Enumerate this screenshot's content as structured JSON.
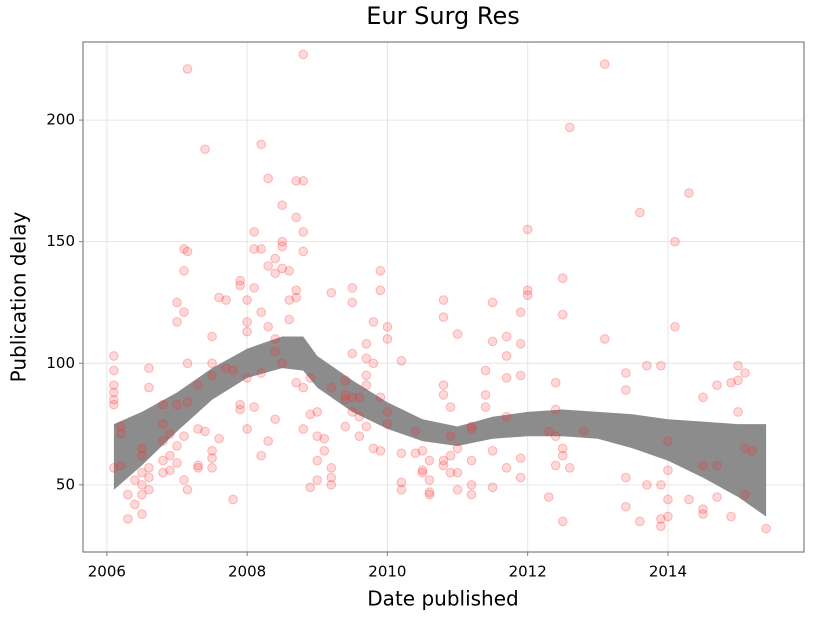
{
  "chart_data": {
    "type": "scatter",
    "title": "Eur Surg Res",
    "x_label": "Date published",
    "y_label": "Publication delay",
    "xlim": [
      2005.66,
      2015.94
    ],
    "ylim": [
      22.4,
      232.1
    ],
    "xticks": [
      2006,
      2008,
      2010,
      2012,
      2014
    ],
    "yticks": [
      50,
      100,
      150,
      200
    ],
    "grid": true,
    "color": "#ff2a2a",
    "band_color": "#8c8c8c",
    "x": [
      2006.1,
      2006.1,
      2006.1,
      2006.1,
      2006.1,
      2006.1,
      2006.1,
      2006.2,
      2006.2,
      2006.2,
      2006.3,
      2006.3,
      2006.4,
      2006.4,
      2006.5,
      2006.5,
      2006.5,
      2006.5,
      2006.5,
      2006.5,
      2006.6,
      2006.6,
      2006.6,
      2006.6,
      2006.6,
      2006.8,
      2006.8,
      2006.8,
      2006.8,
      2006.8,
      2006.9,
      2006.9,
      2006.9,
      2007.0,
      2007.0,
      2007.0,
      2007.0,
      2007.0,
      2007.1,
      2007.1,
      2007.1,
      2007.1,
      2007.1,
      2007.15,
      2007.15,
      2007.15,
      2007.15,
      2007.15,
      2007.3,
      2007.3,
      2007.3,
      2007.3,
      2007.4,
      2007.4,
      2007.5,
      2007.5,
      2007.5,
      2007.5,
      2007.5,
      2007.5,
      2007.6,
      2007.6,
      2007.7,
      2007.7,
      2007.8,
      2007.8,
      2007.9,
      2007.9,
      2007.9,
      2007.9,
      2008.0,
      2008.0,
      2008.0,
      2008.0,
      2008.0,
      2008.1,
      2008.1,
      2008.1,
      2008.1,
      2008.2,
      2008.2,
      2008.2,
      2008.2,
      2008.2,
      2008.3,
      2008.3,
      2008.3,
      2008.3,
      2008.4,
      2008.4,
      2008.4,
      2008.4,
      2008.4,
      2008.5,
      2008.5,
      2008.5,
      2008.5,
      2008.5,
      2008.6,
      2008.6,
      2008.6,
      2008.7,
      2008.7,
      2008.7,
      2008.7,
      2008.7,
      2008.8,
      2008.8,
      2008.8,
      2008.8,
      2008.8,
      2008.8,
      2008.9,
      2008.9,
      2008.9,
      2009.0,
      2009.0,
      2009.0,
      2009.0,
      2009.1,
      2009.1,
      2009.2,
      2009.2,
      2009.2,
      2009.2,
      2009.2,
      2009.4,
      2009.4,
      2009.4,
      2009.4,
      2009.5,
      2009.5,
      2009.5,
      2009.5,
      2009.5,
      2009.6,
      2009.6,
      2009.6,
      2009.7,
      2009.7,
      2009.7,
      2009.7,
      2009.7,
      2009.8,
      2009.8,
      2009.8,
      2009.9,
      2009.9,
      2009.9,
      2009.9,
      2010.0,
      2010.0,
      2010.0,
      2010.0,
      2010.2,
      2010.2,
      2010.2,
      2010.2,
      2010.4,
      2010.4,
      2010.5,
      2010.5,
      2010.5,
      2010.6,
      2010.6,
      2010.6,
      2010.6,
      2010.8,
      2010.8,
      2010.8,
      2010.8,
      2010.8,
      2010.8,
      2010.9,
      2010.9,
      2010.9,
      2010.9,
      2011.0,
      2011.0,
      2011.0,
      2011.0,
      2011.2,
      2011.2,
      2011.2,
      2011.2,
      2011.2,
      2011.4,
      2011.4,
      2011.4,
      2011.5,
      2011.5,
      2011.5,
      2011.5,
      2011.7,
      2011.7,
      2011.7,
      2011.7,
      2011.7,
      2011.9,
      2011.9,
      2011.9,
      2011.9,
      2011.9,
      2012.0,
      2012.0,
      2012.0,
      2012.3,
      2012.3,
      2012.4,
      2012.4,
      2012.4,
      2012.4,
      2012.5,
      2012.5,
      2012.5,
      2012.5,
      2012.5,
      2012.6,
      2012.6,
      2012.8,
      2013.1,
      2013.1,
      2013.4,
      2013.4,
      2013.4,
      2013.4,
      2013.6,
      2013.6,
      2013.7,
      2013.7,
      2013.9,
      2013.9,
      2013.9,
      2013.9,
      2014.0,
      2014.0,
      2014.0,
      2014.0,
      2014.1,
      2014.1,
      2014.3,
      2014.3,
      2014.5,
      2014.5,
      2014.5,
      2014.5,
      2014.7,
      2014.7,
      2014.7,
      2014.9,
      2014.9,
      2015.0,
      2015.0,
      2015.0,
      2015.1,
      2015.1,
      2015.1,
      2015.2,
      2015.4
    ],
    "values": [
      103,
      97,
      91,
      88,
      85,
      83,
      57,
      74,
      71,
      58,
      46,
      36,
      52,
      42,
      65,
      55,
      50,
      38,
      46,
      62,
      98,
      90,
      57,
      48,
      53,
      83,
      75,
      68,
      60,
      55,
      71,
      62,
      56,
      125,
      117,
      83,
      66,
      59,
      147,
      138,
      121,
      70,
      52,
      221,
      146,
      100,
      84,
      48,
      91,
      73,
      58,
      57,
      188,
      72,
      111,
      100,
      95,
      64,
      61,
      57,
      127,
      69,
      126,
      98,
      97,
      44,
      134,
      132,
      83,
      81,
      126,
      117,
      113,
      94,
      73,
      154,
      147,
      131,
      82,
      190,
      147,
      121,
      96,
      62,
      176,
      140,
      115,
      68,
      143,
      137,
      110,
      105,
      77,
      165,
      150,
      148,
      139,
      100,
      138,
      126,
      118,
      175,
      160,
      130,
      127,
      92,
      227,
      175,
      154,
      146,
      90,
      73,
      79,
      49,
      94,
      80,
      70,
      60,
      52,
      69,
      64,
      129,
      90,
      53,
      50,
      57,
      93,
      85,
      74,
      87,
      125,
      131,
      104,
      86,
      80,
      86,
      78,
      70,
      108,
      102,
      95,
      91,
      74,
      117,
      100,
      65,
      138,
      130,
      86,
      64,
      115,
      110,
      80,
      75,
      101,
      63,
      51,
      48,
      63,
      72,
      56,
      55,
      64,
      60,
      52,
      47,
      46,
      126,
      119,
      91,
      87,
      60,
      58,
      82,
      70,
      62,
      55,
      112,
      65,
      55,
      48,
      74,
      73,
      60,
      50,
      46,
      97,
      87,
      82,
      125,
      109,
      64,
      49,
      111,
      103,
      94,
      78,
      57,
      121,
      108,
      95,
      61,
      53,
      155,
      130,
      128,
      72,
      45,
      92,
      81,
      70,
      58,
      135,
      120,
      65,
      62,
      35,
      197,
      57,
      72,
      223,
      110,
      96,
      89,
      53,
      41,
      162,
      35,
      99,
      50,
      99,
      50,
      36,
      33,
      68,
      56,
      44,
      37,
      150,
      115,
      170,
      44,
      86,
      58,
      40,
      38,
      91,
      58,
      45,
      92,
      37,
      99,
      93,
      80,
      96,
      65,
      46,
      64,
      32
    ],
    "band": {
      "x": [
        2006.1,
        2006.5,
        2007.0,
        2007.5,
        2008.0,
        2008.5,
        2008.8,
        2009.0,
        2009.5,
        2010.0,
        2010.5,
        2011.0,
        2011.5,
        2012.0,
        2012.5,
        2013.0,
        2013.5,
        2014.0,
        2014.5,
        2015.0,
        2015.4
      ],
      "lower": [
        48,
        58,
        72,
        85,
        94,
        98,
        97,
        90,
        80,
        73,
        68,
        66,
        69,
        70,
        70,
        69,
        65,
        60,
        53,
        45,
        37
      ],
      "upper": [
        75,
        80,
        88,
        98,
        106,
        111,
        111,
        103,
        93,
        84,
        77,
        74,
        78,
        80,
        81,
        80,
        79,
        77,
        76,
        75,
        75
      ]
    }
  }
}
